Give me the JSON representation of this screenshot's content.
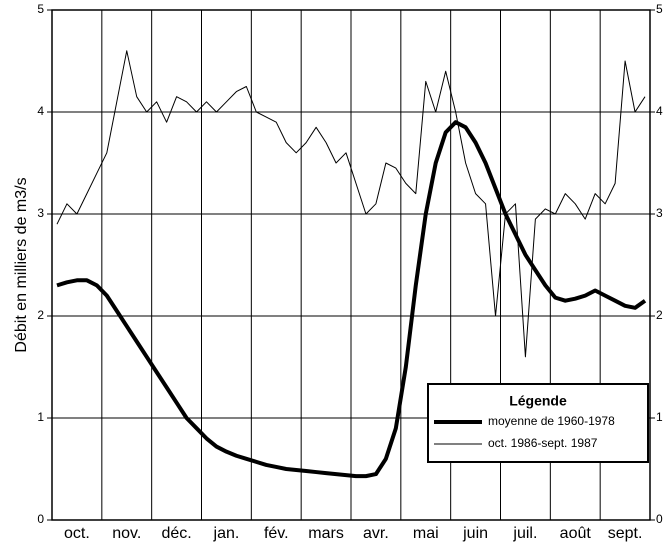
{
  "chart_data": {
    "type": "line",
    "y_label": "Débit en milliers de m3/s",
    "legend_title": "Légende",
    "categories": [
      null,
      null,
      "oct.",
      null,
      null,
      null,
      null,
      "nov.",
      null,
      null,
      null,
      null,
      "déc.",
      null,
      null,
      null,
      null,
      "jan.",
      null,
      null,
      null,
      null,
      "fév.",
      null,
      null,
      null,
      null,
      "mars",
      null,
      null,
      null,
      null,
      "avr.",
      null,
      null,
      null,
      null,
      "mai",
      null,
      null,
      null,
      null,
      "juin",
      null,
      null,
      null,
      null,
      "juil.",
      null,
      null,
      null,
      null,
      "août",
      null,
      null,
      null,
      null,
      "sept.",
      null,
      null
    ],
    "series": [
      {
        "name": "moyenne de 1960-1978",
        "color": "#000000",
        "width": 4,
        "values": [
          2.3,
          2.33,
          2.35,
          2.35,
          2.3,
          2.2,
          2.05,
          1.9,
          1.75,
          1.6,
          1.45,
          1.3,
          1.15,
          1.0,
          0.9,
          0.8,
          0.72,
          0.67,
          0.63,
          0.6,
          0.57,
          0.54,
          0.52,
          0.5,
          0.49,
          0.48,
          0.47,
          0.46,
          0.45,
          0.44,
          0.43,
          0.43,
          0.45,
          0.6,
          0.9,
          1.5,
          2.3,
          3.0,
          3.5,
          3.8,
          3.9,
          3.85,
          3.7,
          3.5,
          3.25,
          3.0,
          2.8,
          2.6,
          2.45,
          2.3,
          2.18,
          2.15,
          2.17,
          2.2,
          2.25,
          2.2,
          2.15,
          2.1,
          2.08,
          2.15
        ]
      },
      {
        "name": "oct. 1986-sept. 1987",
        "color": "#000000",
        "width": 1,
        "values": [
          2.9,
          3.1,
          3.0,
          3.2,
          3.4,
          3.6,
          4.1,
          4.6,
          4.15,
          4.0,
          4.1,
          3.9,
          4.15,
          4.1,
          4.0,
          4.1,
          4.0,
          4.1,
          4.2,
          4.25,
          4.0,
          3.95,
          3.9,
          3.7,
          3.6,
          3.7,
          3.85,
          3.7,
          3.5,
          3.6,
          3.3,
          3.0,
          3.1,
          3.5,
          3.45,
          3.3,
          3.2,
          4.3,
          4.0,
          4.4,
          4.0,
          3.5,
          3.2,
          3.1,
          2.0,
          3.0,
          3.1,
          1.6,
          2.95,
          3.05,
          3.0,
          3.2,
          3.1,
          2.95,
          3.2,
          3.1,
          3.3,
          4.5,
          4.0,
          4.15
        ]
      }
    ],
    "ylim": [
      0,
      5
    ],
    "yticks": [
      0,
      1,
      2,
      3,
      4,
      5
    ],
    "grid": true
  }
}
